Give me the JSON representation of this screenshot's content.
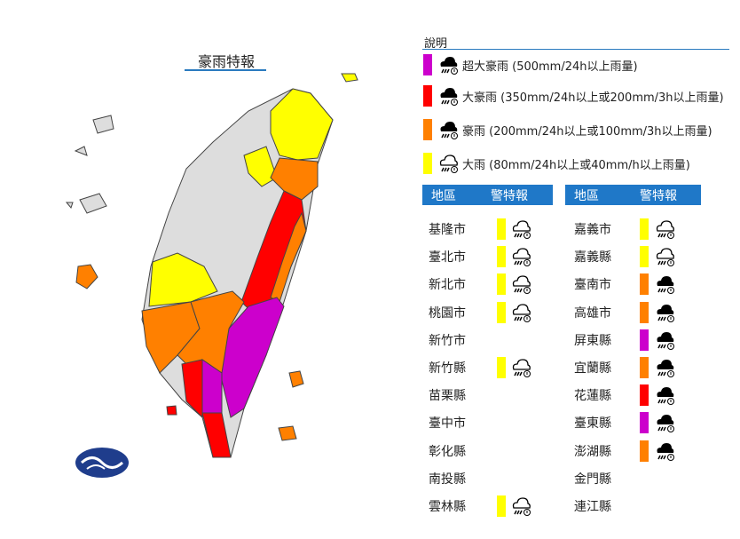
{
  "title": "豪雨特報",
  "colors": {
    "extreme_torrential": "#cc00cc",
    "torrential": "#ff0000",
    "heavy_torrential": "#ff8000",
    "heavy": "#ffff00",
    "none": "#dddddd",
    "header": "#1f78c8"
  },
  "legend": {
    "heading": "說明",
    "items": [
      {
        "level": "extreme_torrential",
        "icon": "heavy-rain-cloud-icon",
        "label": "超大豪雨 (500mm/24h以上雨量)"
      },
      {
        "level": "torrential",
        "icon": "heavy-rain-cloud-icon",
        "label": "大豪雨 (350mm/24h以上或200mm/3h以上雨量)"
      },
      {
        "level": "heavy_torrential",
        "icon": "heavy-rain-cloud-icon",
        "label": "豪雨 (200mm/24h以上或100mm/3h以上雨量)"
      },
      {
        "level": "heavy",
        "icon": "rain-cloud-outline-icon",
        "label": "大雨 (80mm/24h以上或40mm/h以上雨量)"
      }
    ]
  },
  "table": {
    "col_region": "地區",
    "col_warning": "警特報",
    "left": [
      {
        "region": "基隆市",
        "level": "heavy"
      },
      {
        "region": "臺北市",
        "level": "heavy"
      },
      {
        "region": "新北市",
        "level": "heavy"
      },
      {
        "region": "桃園市",
        "level": "heavy"
      },
      {
        "region": "新竹市",
        "level": ""
      },
      {
        "region": "新竹縣",
        "level": "heavy"
      },
      {
        "region": "苗栗縣",
        "level": ""
      },
      {
        "region": "臺中市",
        "level": ""
      },
      {
        "region": "彰化縣",
        "level": ""
      },
      {
        "region": "南投縣",
        "level": ""
      },
      {
        "region": "雲林縣",
        "level": "heavy"
      }
    ],
    "right": [
      {
        "region": "嘉義市",
        "level": "heavy"
      },
      {
        "region": "嘉義縣",
        "level": "heavy"
      },
      {
        "region": "臺南市",
        "level": "heavy_torrential"
      },
      {
        "region": "高雄市",
        "level": "heavy_torrential"
      },
      {
        "region": "屏東縣",
        "level": "extreme_torrential"
      },
      {
        "region": "宜蘭縣",
        "level": "heavy_torrential"
      },
      {
        "region": "花蓮縣",
        "level": "torrential"
      },
      {
        "region": "臺東縣",
        "level": "extreme_torrential"
      },
      {
        "region": "澎湖縣",
        "level": "heavy_torrential"
      },
      {
        "region": "金門縣",
        "level": ""
      },
      {
        "region": "連江縣",
        "level": ""
      }
    ]
  }
}
